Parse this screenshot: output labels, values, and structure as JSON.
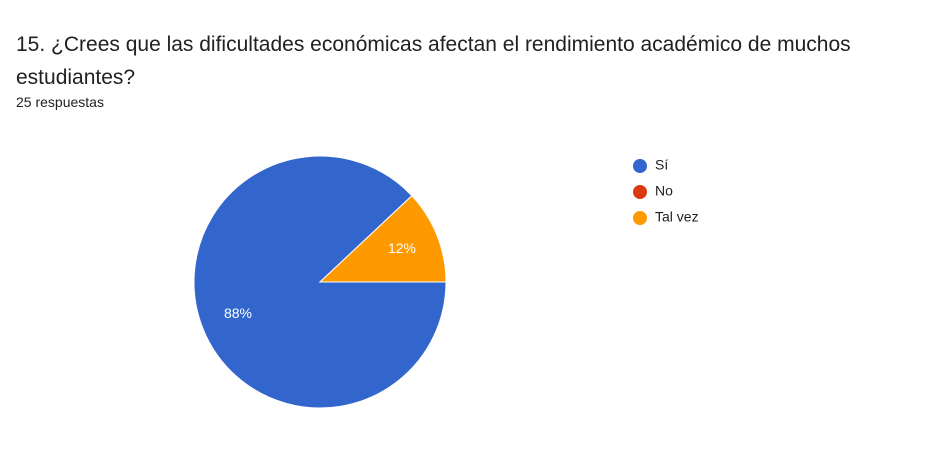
{
  "chart_data": {
    "type": "pie",
    "title": "15. ¿Crees que las dificultades económicas afectan el rendimiento académico de muchos estudiantes?",
    "subtitle": "25 respuestas",
    "categories": [
      "Sí",
      "No",
      "Tal vez"
    ],
    "values": [
      88,
      0,
      12
    ],
    "value_labels": [
      "88%",
      null,
      "12%"
    ],
    "colors": [
      "#3366cc",
      "#dc3912",
      "#ff9900"
    ],
    "legend": "right"
  }
}
